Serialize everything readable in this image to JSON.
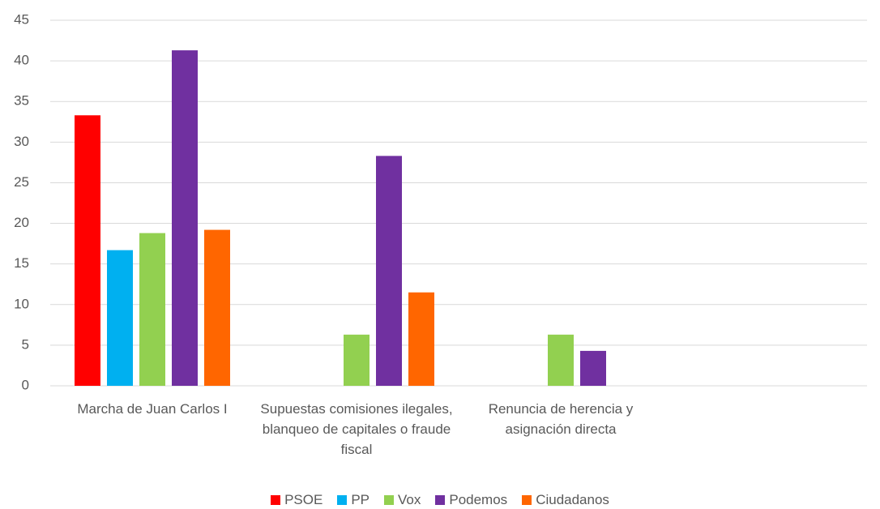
{
  "chart_data": {
    "type": "bar",
    "categories": [
      "Marcha de Juan Carlos I",
      "Supuestas comisiones ilegales, blanqueo de capitales o fraude fiscal",
      "Renuncia de herencia y asignación directa",
      null
    ],
    "series": [
      {
        "name": "PSOE",
        "color": "#ff0000",
        "values": [
          33.3,
          0,
          0,
          null
        ]
      },
      {
        "name": "PP",
        "color": "#00b0f0",
        "values": [
          16.7,
          0,
          0,
          null
        ]
      },
      {
        "name": "Vox",
        "color": "#92d050",
        "values": [
          18.8,
          6.3,
          6.3,
          null
        ]
      },
      {
        "name": "Podemos",
        "color": "#7030a0",
        "values": [
          41.3,
          28.3,
          4.3,
          null
        ]
      },
      {
        "name": "Ciudadanos",
        "color": "#ff6600",
        "values": [
          19.2,
          11.5,
          0,
          null
        ]
      }
    ],
    "ylim": [
      0,
      45
    ],
    "yticks": [
      0,
      5,
      10,
      15,
      20,
      25,
      30,
      35,
      40,
      45
    ],
    "grid": true,
    "legend": "bottom"
  }
}
